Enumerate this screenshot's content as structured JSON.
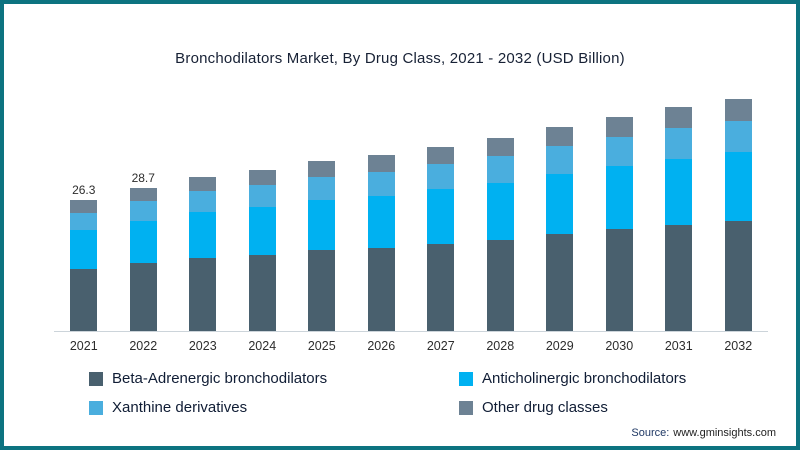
{
  "colors": {
    "frame_border": "#0d7380"
  },
  "chart_data": {
    "type": "bar",
    "stacked": true,
    "title": "Bronchodilators Market, By Drug Class, 2021 - 2032 (USD Billion)",
    "categories": [
      "2021",
      "2022",
      "2023",
      "2024",
      "2025",
      "2026",
      "2027",
      "2028",
      "2029",
      "2030",
      "2031",
      "2032"
    ],
    "series": [
      {
        "name": "Beta-Adrenergic bronchodilators",
        "color": "#49606e",
        "values": [
          12.5,
          13.6,
          14.7,
          15.3,
          16.2,
          16.7,
          17.5,
          18.3,
          19.4,
          20.4,
          21.3,
          22.1
        ]
      },
      {
        "name": "Anticholinergic bronchodilators",
        "color": "#00b1f1",
        "values": [
          7.7,
          8.5,
          9.1,
          9.5,
          10.0,
          10.4,
          10.9,
          11.4,
          12.1,
          12.7,
          13.2,
          13.7
        ]
      },
      {
        "name": "Xanthine derivatives",
        "color": "#4aaede",
        "values": [
          3.5,
          3.9,
          4.2,
          4.4,
          4.6,
          4.8,
          5.0,
          5.3,
          5.5,
          5.8,
          6.1,
          6.3
        ]
      },
      {
        "name": "Other drug classes",
        "color": "#6d8294",
        "values": [
          2.6,
          2.7,
          2.9,
          3.0,
          3.2,
          3.3,
          3.4,
          3.6,
          3.9,
          4.0,
          4.3,
          4.4
        ]
      }
    ],
    "totals_estimated": [
      26.3,
      28.7,
      30.9,
      32.2,
      34.0,
      35.2,
      36.8,
      38.6,
      40.9,
      42.9,
      44.9,
      46.5
    ],
    "bar_value_labels": [
      "26.3",
      "28.7",
      "",
      "",
      "",
      "",
      "",
      "",
      "",
      "",
      "",
      ""
    ],
    "xlabel": "",
    "ylabel": "",
    "ylim": [
      0,
      50
    ],
    "grid": false,
    "legend_position": "bottom"
  },
  "source": {
    "prefix": "Source:",
    "url": "www.gminsights.com"
  }
}
